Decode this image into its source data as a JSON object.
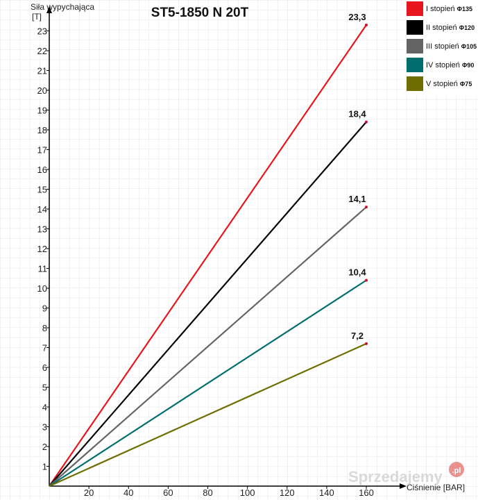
{
  "chart_data": {
    "type": "line",
    "title": "ST5-1850 N 20T",
    "ylabel_line1": "Siła wypychająca",
    "ylabel_line2": "[T]",
    "xlabel": "Ciśnienie [BAR]",
    "xlim": [
      0,
      165
    ],
    "ylim": [
      0,
      24.5
    ],
    "x_ticks": [
      "20",
      "40",
      "60",
      "80",
      "100",
      "120",
      "140",
      "160"
    ],
    "y_ticks": [
      "1",
      "2",
      "3",
      "4",
      "5",
      "6",
      "7",
      "8",
      "9",
      "10",
      "11",
      "12",
      "13",
      "14",
      "15",
      "16",
      "17",
      "18",
      "19",
      "20",
      "21",
      "22",
      "23"
    ],
    "grid": true,
    "legend_position": "top-right",
    "series": [
      {
        "name": "I stopień",
        "suffix": "Φ135",
        "color": "#e8141e",
        "x": [
          0,
          160
        ],
        "y": [
          0,
          23.3
        ],
        "end_label": "23,3"
      },
      {
        "name": "II stopień",
        "suffix": "Φ120",
        "color": "#000000",
        "x": [
          0,
          160
        ],
        "y": [
          0,
          18.4
        ],
        "end_label": "18,4"
      },
      {
        "name": "III stopień",
        "suffix": "Φ105",
        "color": "#646464",
        "x": [
          0,
          160
        ],
        "y": [
          0,
          14.1
        ],
        "end_label": "14,1"
      },
      {
        "name": "IV stopień",
        "suffix": "Φ90",
        "color": "#006e6e",
        "x": [
          0,
          160
        ],
        "y": [
          0,
          10.4
        ],
        "end_label": "10,4"
      },
      {
        "name": "V stopień",
        "suffix": "Φ75",
        "color": "#6e6e00",
        "x": [
          0,
          160
        ],
        "y": [
          0,
          7.2
        ],
        "end_label": "7,2"
      }
    ]
  },
  "watermark": {
    "text": "Sprzedajemy",
    "badge": ".pl"
  }
}
